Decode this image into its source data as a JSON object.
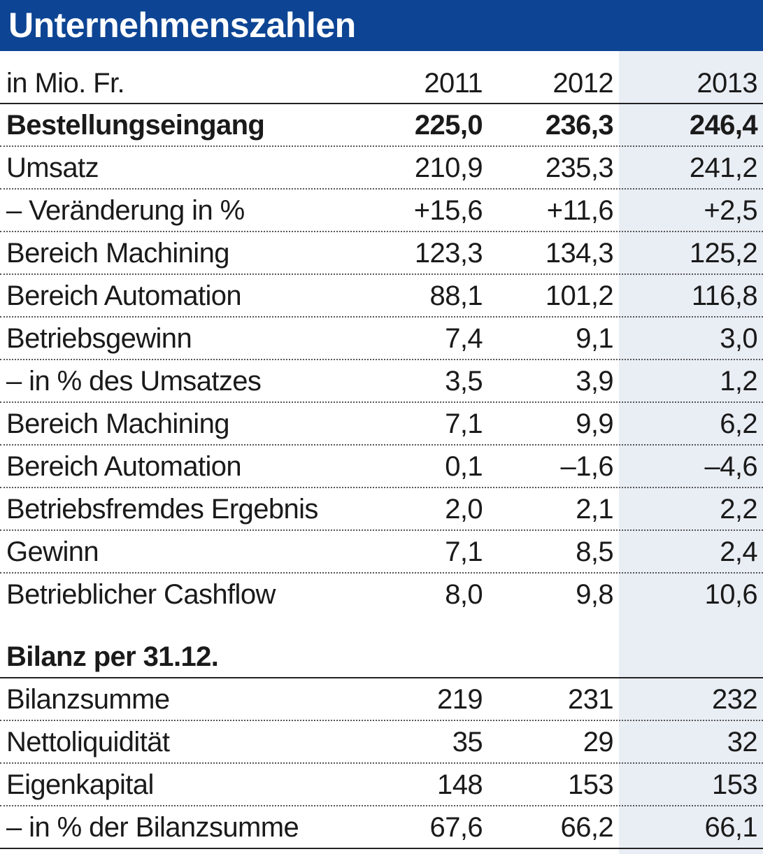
{
  "title": "Unternehmenszahlen",
  "header": {
    "unit": "in Mio. Fr.",
    "years": [
      "2011",
      "2012",
      "2013"
    ]
  },
  "rows": [
    {
      "label": "Bestellungseingang",
      "values": [
        "225,0",
        "236,3",
        "246,4"
      ],
      "bold": true
    },
    {
      "label": "Umsatz",
      "values": [
        "210,9",
        "235,3",
        "241,2"
      ]
    },
    {
      "label": "– Veränderung in %",
      "values": [
        "+15,6",
        "+11,6",
        "+2,5"
      ]
    },
    {
      "label": "Bereich Machining",
      "values": [
        "123,3",
        "134,3",
        "125,2"
      ]
    },
    {
      "label": "Bereich Automation",
      "values": [
        "88,1",
        "101,2",
        "116,8"
      ]
    },
    {
      "label": "Betriebsgewinn",
      "values": [
        "7,4",
        "9,1",
        "3,0"
      ]
    },
    {
      "label": "– in % des Umsatzes",
      "values": [
        "3,5",
        "3,9",
        "1,2"
      ]
    },
    {
      "label": "Bereich Machining",
      "values": [
        "7,1",
        "9,9",
        "6,2"
      ]
    },
    {
      "label": "Bereich Automation",
      "values": [
        "0,1",
        "–1,6",
        "–4,6"
      ]
    },
    {
      "label": "Betriebsfremdes Ergebnis",
      "values": [
        "2,0",
        "2,1",
        "2,2"
      ]
    },
    {
      "label": "Gewinn",
      "values": [
        "7,1",
        "8,5",
        "2,4"
      ]
    },
    {
      "label": "Betrieblicher Cashflow",
      "values": [
        "8,0",
        "9,8",
        "10,6"
      ]
    }
  ],
  "balance": {
    "section_title": "Bilanz per 31.12.",
    "rows": [
      {
        "label": "Bilanzsumme",
        "values": [
          "219",
          "231",
          "232"
        ]
      },
      {
        "label": "Nettoliquidität",
        "values": [
          "35",
          "29",
          "32"
        ]
      },
      {
        "label": "Eigenkapital",
        "values": [
          "148",
          "153",
          "153"
        ]
      },
      {
        "label": "– in % der Bilanzsumme",
        "values": [
          "67,6",
          "66,2",
          "66,1"
        ]
      }
    ]
  },
  "colors": {
    "title_bar": "#0d4594",
    "highlight_column": "#e9edf4",
    "text": "#1a1a1a"
  }
}
